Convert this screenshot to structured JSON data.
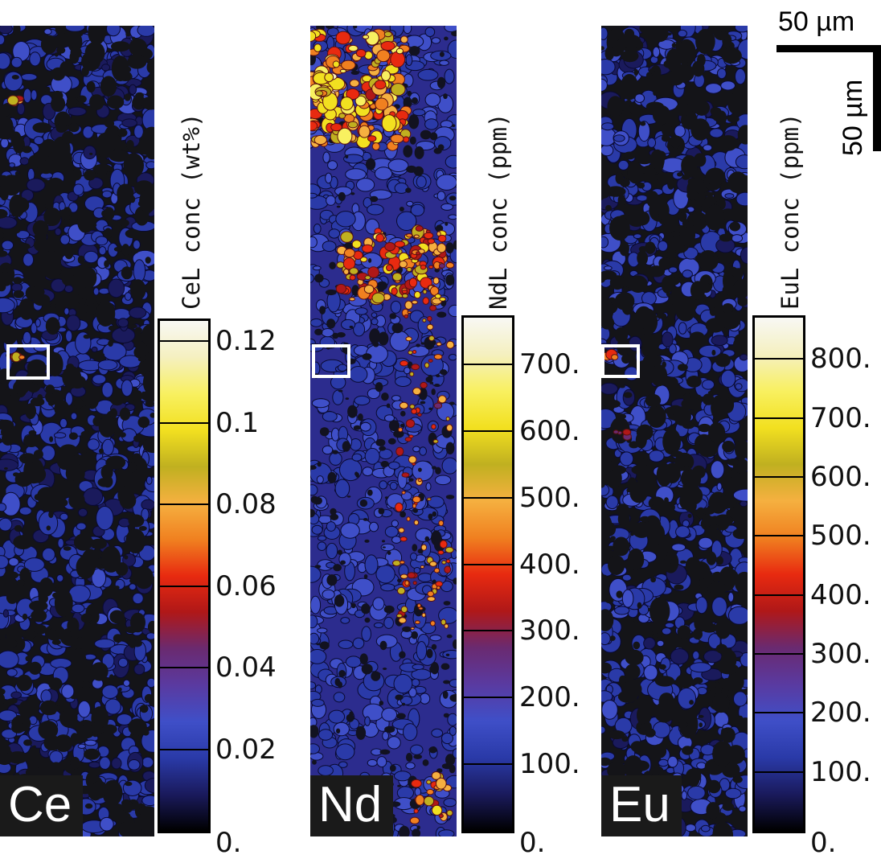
{
  "chart_data": [
    {
      "type": "heatmap",
      "panel": "Ce",
      "element_label": "Ce",
      "colorbar_title": "CeL conc (wt%)",
      "unit": "wt%",
      "ticks": [
        "0.",
        "0.02",
        "0.04",
        "0.06",
        "0.08",
        "0.1",
        "0.12"
      ],
      "tick_values": [
        0,
        0.02,
        0.04,
        0.06,
        0.08,
        0.1,
        0.12
      ],
      "range": [
        0,
        0.125
      ],
      "dominant_level": 0.02,
      "hotspot_max": 0.09
    },
    {
      "type": "heatmap",
      "panel": "Nd",
      "element_label": "Nd",
      "colorbar_title": "NdL conc (ppm)",
      "unit": "ppm",
      "ticks": [
        "0.",
        "100.",
        "200.",
        "300.",
        "400.",
        "500.",
        "600.",
        "700."
      ],
      "tick_values": [
        0,
        100,
        200,
        300,
        400,
        500,
        600,
        700
      ],
      "range": [
        0,
        770
      ],
      "dominant_level": 150,
      "hotspot_max": 650
    },
    {
      "type": "heatmap",
      "panel": "Eu",
      "element_label": "Eu",
      "colorbar_title": "EuL conc (ppm)",
      "unit": "ppm",
      "ticks": [
        "0.",
        "100.",
        "200.",
        "300.",
        "400.",
        "500.",
        "600.",
        "700.",
        "800."
      ],
      "tick_values": [
        0,
        100,
        200,
        300,
        400,
        500,
        600,
        700,
        800
      ],
      "range": [
        0,
        870
      ],
      "dominant_level": 150,
      "hotspot_max": 600
    }
  ],
  "scale_bar": {
    "horizontal_label": "50 µm",
    "vertical_label": "50 µm"
  },
  "colormap": [
    "#000000",
    "#1a1a5c",
    "#2a3aa8",
    "#3f4fc8",
    "#5a3aa0",
    "#6a2a70",
    "#b01818",
    "#e82a10",
    "#f08020",
    "#f5b040",
    "#c0b020",
    "#f2e020",
    "#f8f060",
    "#f5f0c0",
    "#f8f8f4"
  ]
}
